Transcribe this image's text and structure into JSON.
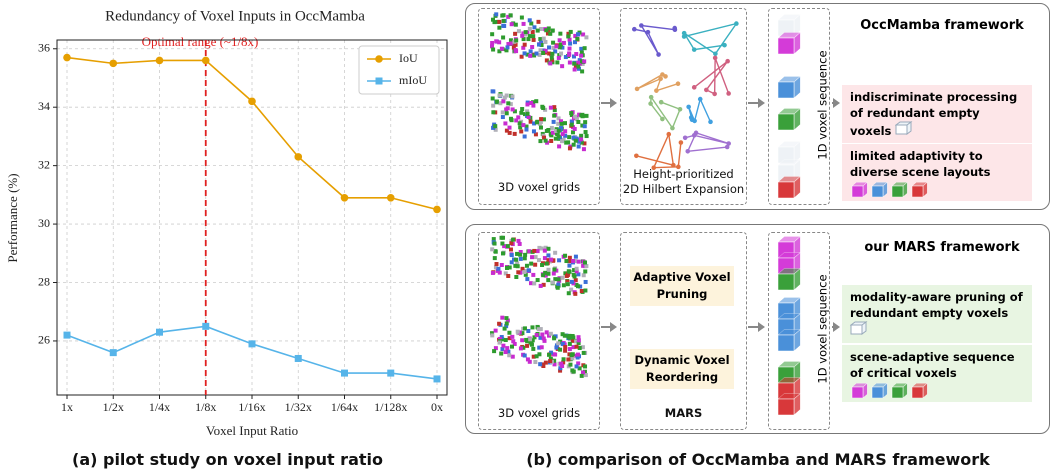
{
  "chart_data": {
    "type": "line",
    "title": "Redundancy of Voxel Inputs in OccMamba",
    "annotation": "Optimal range (~1/8x)",
    "vline": "1/8x",
    "x_label": "Voxel Input Ratio",
    "y_label": "Performance (%)",
    "categories": [
      "1x",
      "1/2x",
      "1/4x",
      "1/8x",
      "1/16x",
      "1/32x",
      "1/64x",
      "1/128x",
      "0x"
    ],
    "series": [
      {
        "name": "IoU",
        "color": "#e69f00",
        "marker": "circle",
        "values": [
          35.7,
          35.5,
          35.6,
          35.6,
          34.2,
          32.3,
          30.9,
          30.9,
          30.5
        ]
      },
      {
        "name": "mIoU",
        "color": "#56b4e9",
        "marker": "square",
        "values": [
          26.2,
          25.6,
          26.3,
          26.5,
          25.9,
          25.4,
          24.9,
          24.9,
          24.7
        ]
      }
    ],
    "ylim": [
      24.15,
      36.3
    ],
    "yticks": [
      26,
      28,
      30,
      32,
      34,
      36
    ],
    "grid": true,
    "legend": "upper right"
  },
  "diagram": {
    "top": {
      "grid_label": "3D voxel grids",
      "expansion_label": [
        "Height-prioritized",
        "2D Hilbert Expansion"
      ],
      "sequence_label": "1D voxel sequence",
      "title": "OccMamba framework",
      "notes": [
        "indiscriminate processing of redundant empty voxels",
        "limited adaptivity to diverse scene layouts"
      ]
    },
    "bottom": {
      "grid_label": "3D voxel grids",
      "modules": [
        "Adaptive Voxel Pruning",
        "Dynamic Voxel Reordering"
      ],
      "module_box_label": "MARS",
      "sequence_label": "1D voxel sequence",
      "title": "our MARS framework",
      "notes": [
        "modality-aware pruning of redundant empty voxels",
        "scene-adaptive sequence of critical voxels"
      ]
    }
  },
  "captions": {
    "a": "(a) pilot study on voxel input ratio",
    "b": "(b) comparison of OccMamba and MARS framework"
  }
}
